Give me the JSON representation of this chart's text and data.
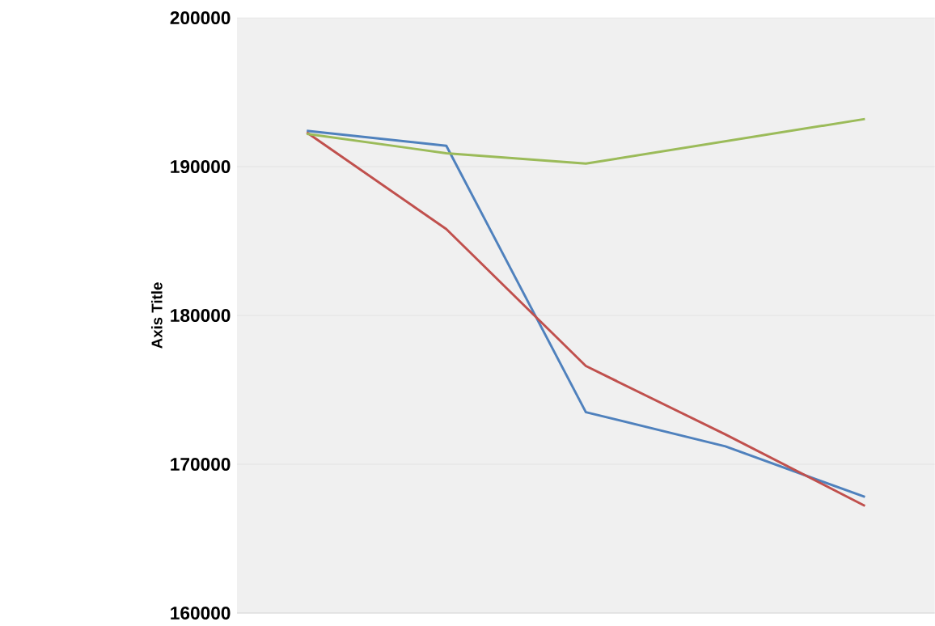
{
  "chart_data": {
    "type": "line",
    "ylabel": "Axis Title",
    "categories": [
      null,
      null,
      null,
      null,
      null
    ],
    "series": [
      {
        "color": "#4f81bd",
        "values": [
          192400,
          191400,
          173500,
          171200,
          167800
        ]
      },
      {
        "color": "#c0504d",
        "values": [
          192300,
          185800,
          176600,
          172000,
          167200
        ]
      },
      {
        "color": "#9bbb59",
        "values": [
          192200,
          190900,
          190200,
          191700,
          193200
        ]
      }
    ],
    "ylim": [
      160000,
      200000
    ],
    "yticks": [
      160000,
      170000,
      180000,
      190000,
      200000
    ],
    "grid": "y",
    "tick_labels": "y",
    "marker": "none",
    "line_style": "solid"
  }
}
